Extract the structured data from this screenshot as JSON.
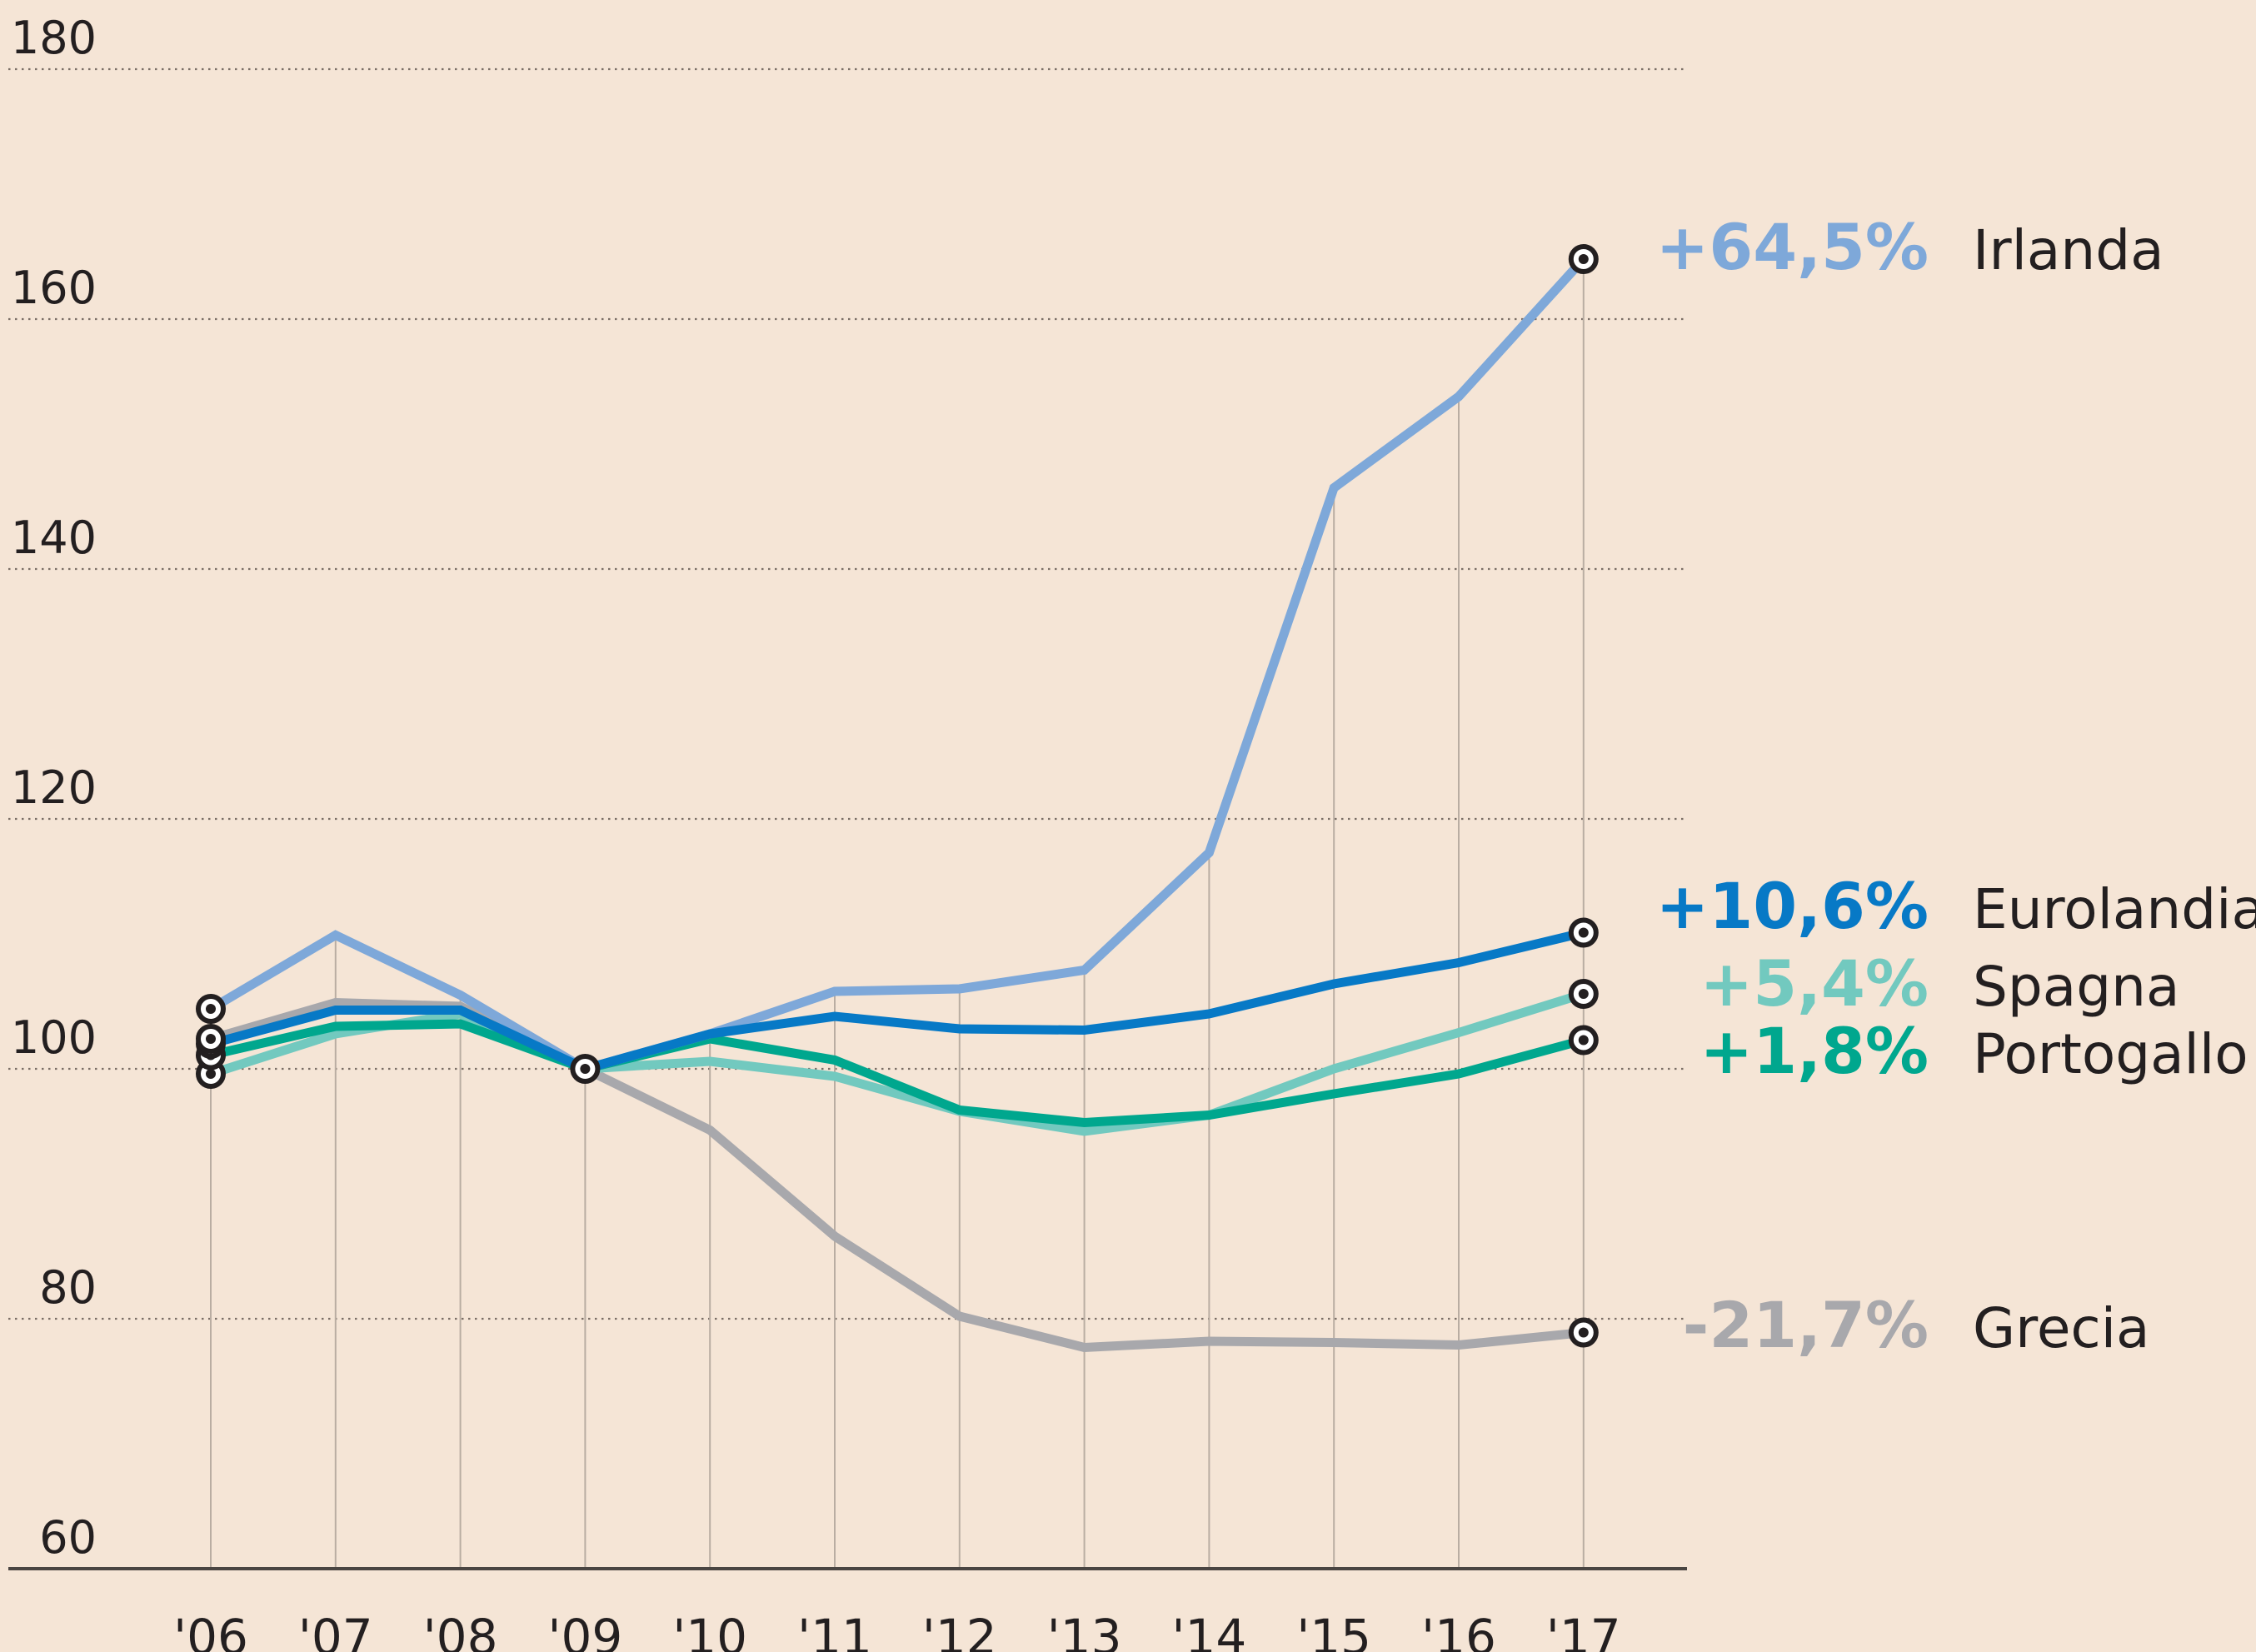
{
  "chart_data": {
    "type": "line",
    "title": "",
    "xlabel": "",
    "ylabel": "",
    "x": [
      "'06",
      "'07",
      "'08",
      "'09",
      "'10",
      "'11",
      "'12",
      "'13",
      "'14",
      "'15",
      "'16",
      "'17"
    ],
    "ylim": [
      60,
      180
    ],
    "yticks": [
      60,
      80,
      100,
      120,
      140,
      160,
      180
    ],
    "ytick_labels": [
      "60",
      "80",
      "100",
      "120",
      "140",
      "160",
      "180"
    ],
    "grid": "horizontal dotted",
    "legend": "right end labels",
    "series": [
      {
        "name": "Irlanda",
        "change_label": "+64,5%",
        "color": "#7ea8d9",
        "values": [
          104.8,
          110.7,
          105.9,
          100,
          102.8,
          106.2,
          106.4,
          107.9,
          117.3,
          146.5,
          153.8,
          164.8
        ]
      },
      {
        "name": "Eurolandia",
        "change_label": "+10,6%",
        "color": "#0779c6",
        "values": [
          102.0,
          104.7,
          104.7,
          100,
          102.8,
          104.2,
          103.2,
          103.1,
          104.4,
          106.8,
          108.5,
          110.9
        ]
      },
      {
        "name": "Spagna",
        "change_label": "+5,4%",
        "color": "#72c9bf",
        "values": [
          99.6,
          102.8,
          104.4,
          100,
          100.6,
          99.4,
          96.6,
          95.0,
          96.3,
          100.0,
          102.9,
          106.0
        ]
      },
      {
        "name": "Portogallo",
        "change_label": "+1,8%",
        "color": "#00a78e",
        "values": [
          101.1,
          103.4,
          103.6,
          100,
          102.4,
          100.7,
          96.7,
          95.7,
          96.3,
          98.0,
          99.6,
          102.3
        ]
      },
      {
        "name": "Grecia",
        "change_label": "-21,7%",
        "color": "#a8a8ac",
        "values": [
          102.4,
          105.3,
          105.0,
          100,
          95.1,
          86.6,
          80.2,
          77.7,
          78.2,
          78.1,
          77.9,
          78.9
        ]
      }
    ],
    "markers": "circle at '06, '09 and '17"
  }
}
